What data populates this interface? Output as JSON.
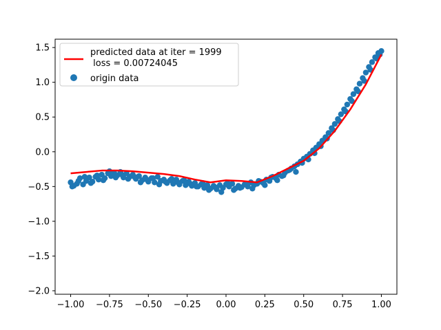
{
  "chart_data": {
    "type": "scatter",
    "title": "",
    "xlabel": "",
    "ylabel": "",
    "xlim": [
      -1.1,
      1.1
    ],
    "ylim": [
      -2.05,
      1.62
    ],
    "grid": false,
    "legend_placement": "top-left",
    "x_ticks": [
      {
        "value": -1.0,
        "label": "−1.00"
      },
      {
        "value": -0.75,
        "label": "−0.75"
      },
      {
        "value": -0.5,
        "label": "−0.50"
      },
      {
        "value": -0.25,
        "label": "−0.25"
      },
      {
        "value": 0.0,
        "label": "0.00"
      },
      {
        "value": 0.25,
        "label": "0.25"
      },
      {
        "value": 0.5,
        "label": "0.50"
      },
      {
        "value": 0.75,
        "label": "0.75"
      },
      {
        "value": 1.0,
        "label": "1.00"
      }
    ],
    "y_ticks": [
      {
        "value": 1.5,
        "label": "1.5"
      },
      {
        "value": 1.0,
        "label": "1.0"
      },
      {
        "value": 0.5,
        "label": "0.5"
      },
      {
        "value": 0.0,
        "label": "0.0"
      },
      {
        "value": -0.5,
        "label": "−0.5"
      },
      {
        "value": -1.0,
        "label": "−1.0"
      },
      {
        "value": -1.5,
        "label": "−1.5"
      },
      {
        "value": -2.0,
        "label": "−2.0"
      }
    ],
    "series": [
      {
        "name": "origin data",
        "kind": "scatter",
        "color": "#1f77b4",
        "x": [
          -1.0,
          -0.98,
          -0.96,
          -0.94,
          -0.92,
          -0.9,
          -0.88,
          -0.86,
          -0.84,
          -0.82,
          -0.8,
          -0.78,
          -0.76,
          -0.74,
          -0.72,
          -0.7,
          -0.68,
          -0.66,
          -0.64,
          -0.62,
          -0.6,
          -0.58,
          -0.56,
          -0.54,
          -0.52,
          -0.5,
          -0.48,
          -0.46,
          -0.44,
          -0.42,
          -0.4,
          -0.38,
          -0.36,
          -0.34,
          -0.32,
          -0.3,
          -0.28,
          -0.26,
          -0.24,
          -0.22,
          -0.2,
          -0.18,
          -0.16,
          -0.14,
          -0.12,
          -0.1,
          -0.08,
          -0.06,
          -0.04,
          -0.02,
          0.0,
          0.02,
          0.04,
          0.06,
          0.08,
          0.1,
          0.12,
          0.14,
          0.16,
          0.18,
          0.2,
          0.22,
          0.24,
          0.26,
          0.28,
          0.3,
          0.32,
          0.34,
          0.36,
          0.38,
          0.4,
          0.42,
          0.44,
          0.46,
          0.48,
          0.5,
          0.52,
          0.54,
          0.56,
          0.58,
          0.6,
          0.62,
          0.64,
          0.66,
          0.68,
          0.7,
          0.72,
          0.74,
          0.76,
          0.78,
          0.8,
          0.82,
          0.84,
          0.86,
          0.88,
          0.9,
          0.92,
          0.94,
          0.96,
          0.98,
          1.0,
          -0.99,
          -0.95,
          -0.91,
          -0.87,
          -0.83,
          -0.79,
          -0.75,
          -0.71,
          -0.67,
          -0.63,
          -0.59,
          -0.55,
          -0.51,
          -0.47,
          -0.43,
          -0.39,
          -0.35,
          -0.31,
          -0.27,
          -0.23,
          -0.19,
          -0.15,
          -0.11,
          -0.07,
          -0.03,
          0.01,
          0.05,
          0.09,
          0.13,
          0.17,
          0.21,
          0.25,
          0.29,
          0.33,
          0.37,
          0.41,
          0.45,
          0.49,
          0.53,
          0.57,
          0.61,
          0.65,
          0.69,
          0.73,
          0.77,
          0.81,
          0.85,
          0.89,
          0.93,
          0.97,
          0.99
        ],
        "y": [
          -0.44,
          -0.49,
          -0.46,
          -0.38,
          -0.47,
          -0.42,
          -0.37,
          -0.43,
          -0.36,
          -0.4,
          -0.33,
          -0.38,
          -0.31,
          -0.35,
          -0.3,
          -0.34,
          -0.29,
          -0.37,
          -0.31,
          -0.36,
          -0.33,
          -0.39,
          -0.35,
          -0.41,
          -0.37,
          -0.43,
          -0.38,
          -0.44,
          -0.36,
          -0.42,
          -0.4,
          -0.45,
          -0.41,
          -0.46,
          -0.4,
          -0.47,
          -0.42,
          -0.48,
          -0.43,
          -0.49,
          -0.45,
          -0.5,
          -0.47,
          -0.52,
          -0.48,
          -0.53,
          -0.49,
          -0.54,
          -0.48,
          -0.52,
          -0.47,
          -0.5,
          -0.46,
          -0.53,
          -0.49,
          -0.51,
          -0.47,
          -0.5,
          -0.44,
          -0.48,
          -0.46,
          -0.43,
          -0.45,
          -0.4,
          -0.42,
          -0.36,
          -0.38,
          -0.33,
          -0.35,
          -0.3,
          -0.27,
          -0.24,
          -0.21,
          -0.18,
          -0.14,
          -0.1,
          -0.07,
          -0.03,
          0.02,
          0.06,
          0.11,
          0.16,
          0.21,
          0.27,
          0.34,
          0.4,
          0.47,
          0.54,
          0.61,
          0.68,
          0.76,
          0.83,
          0.9,
          0.98,
          1.06,
          1.14,
          1.22,
          1.29,
          1.36,
          1.42,
          1.45,
          -0.5,
          -0.42,
          -0.36,
          -0.45,
          -0.34,
          -0.41,
          -0.28,
          -0.37,
          -0.33,
          -0.39,
          -0.36,
          -0.44,
          -0.4,
          -0.38,
          -0.47,
          -0.43,
          -0.39,
          -0.44,
          -0.41,
          -0.46,
          -0.5,
          -0.45,
          -0.55,
          -0.51,
          -0.58,
          -0.45,
          -0.55,
          -0.52,
          -0.47,
          -0.53,
          -0.42,
          -0.48,
          -0.37,
          -0.41,
          -0.34,
          -0.26,
          -0.29,
          -0.16,
          -0.11,
          -0.02,
          0.08,
          0.19,
          0.31,
          0.44,
          0.58,
          0.73,
          0.87,
          1.02,
          1.18,
          1.34,
          1.4
        ]
      },
      {
        "name": "predicted data at iter = 1999\n loss = 0.00724045",
        "kind": "line",
        "color": "#ff0000",
        "x": [
          -1.0,
          -0.9,
          -0.8,
          -0.7,
          -0.6,
          -0.5,
          -0.4,
          -0.3,
          -0.2,
          -0.1,
          0.0,
          0.1,
          0.2,
          0.3,
          0.4,
          0.5,
          0.6,
          0.7,
          0.8,
          0.9,
          1.0
        ],
        "y": [
          -0.31,
          -0.29,
          -0.27,
          -0.27,
          -0.28,
          -0.3,
          -0.32,
          -0.35,
          -0.4,
          -0.44,
          -0.41,
          -0.42,
          -0.44,
          -0.35,
          -0.24,
          -0.13,
          0.05,
          0.3,
          0.61,
          0.97,
          1.4
        ]
      }
    ],
    "legend": {
      "line_label_1": "predicted data at iter = 1999",
      "line_label_2": " loss = 0.00724045",
      "scatter_label": "origin data"
    }
  }
}
